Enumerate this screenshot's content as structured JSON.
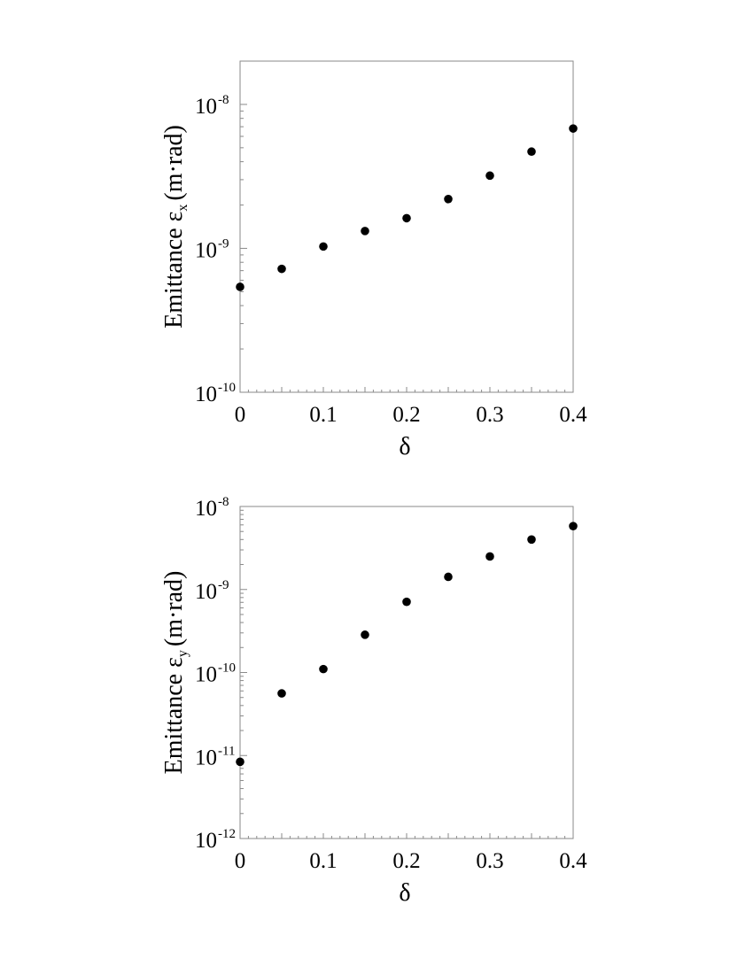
{
  "chart_data": [
    {
      "type": "scatter",
      "y_scale": "log",
      "xlim": [
        0,
        0.4
      ],
      "ylim": [
        1e-10,
        2e-08
      ],
      "x_ticks": [
        0,
        0.05,
        0.1,
        0.15,
        0.2,
        0.25,
        0.3,
        0.35,
        0.4
      ],
      "x_tick_labels": [
        {
          "value": 0,
          "label": "0"
        },
        {
          "value": 0.1,
          "label": "0.1"
        },
        {
          "value": 0.2,
          "label": "0.2"
        },
        {
          "value": 0.3,
          "label": "0.3"
        },
        {
          "value": 0.4,
          "label": "0.4"
        }
      ],
      "y_tick_labels": [
        {
          "value": 1e-10,
          "base": "10",
          "exp": "-10"
        },
        {
          "value": 1e-09,
          "base": "10",
          "exp": "-9"
        },
        {
          "value": 1e-08,
          "base": "10",
          "exp": "-8"
        }
      ],
      "xlabel": "δ",
      "ylabel": {
        "main": "Emittance   ε",
        "sub": "x",
        "unit": "(m·rad)"
      },
      "grid": false,
      "series": [
        {
          "color": "#000000",
          "points": [
            {
              "x": 0,
              "y": 5.4e-10
            },
            {
              "x": 0.05,
              "y": 7.2e-10
            },
            {
              "x": 0.1,
              "y": 1.03e-09
            },
            {
              "x": 0.15,
              "y": 1.32e-09
            },
            {
              "x": 0.2,
              "y": 1.62e-09
            },
            {
              "x": 0.25,
              "y": 2.2e-09
            },
            {
              "x": 0.3,
              "y": 3.2e-09
            },
            {
              "x": 0.35,
              "y": 4.7e-09
            },
            {
              "x": 0.4,
              "y": 6.8e-09
            }
          ]
        }
      ]
    },
    {
      "type": "scatter",
      "y_scale": "log",
      "xlim": [
        0,
        0.4
      ],
      "ylim": [
        1e-12,
        1e-08
      ],
      "x_ticks": [
        0,
        0.05,
        0.1,
        0.15,
        0.2,
        0.25,
        0.3,
        0.35,
        0.4
      ],
      "x_tick_labels": [
        {
          "value": 0,
          "label": "0"
        },
        {
          "value": 0.1,
          "label": "0.1"
        },
        {
          "value": 0.2,
          "label": "0.2"
        },
        {
          "value": 0.3,
          "label": "0.3"
        },
        {
          "value": 0.4,
          "label": "0.4"
        }
      ],
      "y_tick_labels": [
        {
          "value": 1e-12,
          "base": "10",
          "exp": "-12"
        },
        {
          "value": 1e-11,
          "base": "10",
          "exp": "-11"
        },
        {
          "value": 1e-10,
          "base": "10",
          "exp": "-10"
        },
        {
          "value": 1e-09,
          "base": "10",
          "exp": "-9"
        },
        {
          "value": 1e-08,
          "base": "10",
          "exp": "-8"
        }
      ],
      "xlabel": "δ",
      "ylabel": {
        "main": "Emittance   ε",
        "sub": "y",
        "unit": "(m·rad)"
      },
      "grid": false,
      "series": [
        {
          "color": "#000000",
          "points": [
            {
              "x": 0,
              "y": 8.4e-12
            },
            {
              "x": 0.05,
              "y": 5.6e-11
            },
            {
              "x": 0.1,
              "y": 1.1e-10
            },
            {
              "x": 0.15,
              "y": 2.85e-10
            },
            {
              "x": 0.2,
              "y": 7.1e-10
            },
            {
              "x": 0.25,
              "y": 1.42e-09
            },
            {
              "x": 0.3,
              "y": 2.5e-09
            },
            {
              "x": 0.35,
              "y": 4e-09
            },
            {
              "x": 0.4,
              "y": 5.8e-09
            }
          ]
        }
      ]
    }
  ]
}
